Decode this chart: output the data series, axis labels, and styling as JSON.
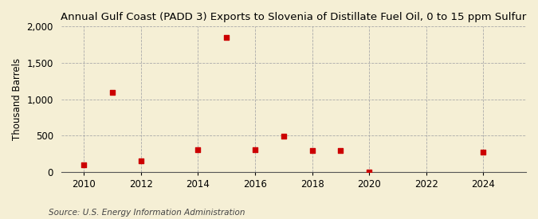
{
  "title": "Annual Gulf Coast (PADD 3) Exports to Slovenia of Distillate Fuel Oil, 0 to 15 ppm Sulfur",
  "ylabel": "Thousand Barrels",
  "source": "Source: U.S. Energy Information Administration",
  "background_color": "#f5efd5",
  "years": [
    2010,
    2011,
    2012,
    2014,
    2015,
    2016,
    2017,
    2018,
    2019,
    2020,
    2024
  ],
  "values": [
    96,
    1097,
    152,
    305,
    1848,
    301,
    497,
    298,
    299,
    5,
    276
  ],
  "marker_color": "#cc0000",
  "marker_size": 5,
  "ylim": [
    0,
    2000
  ],
  "yticks": [
    0,
    500,
    1000,
    1500,
    2000
  ],
  "ytick_labels": [
    "0",
    "500",
    "1,000",
    "1,500",
    "2,000"
  ],
  "xlim": [
    2009.2,
    2025.5
  ],
  "xticks": [
    2010,
    2012,
    2014,
    2016,
    2018,
    2020,
    2022,
    2024
  ],
  "title_fontsize": 9.5,
  "axis_fontsize": 8.5,
  "source_fontsize": 7.5
}
